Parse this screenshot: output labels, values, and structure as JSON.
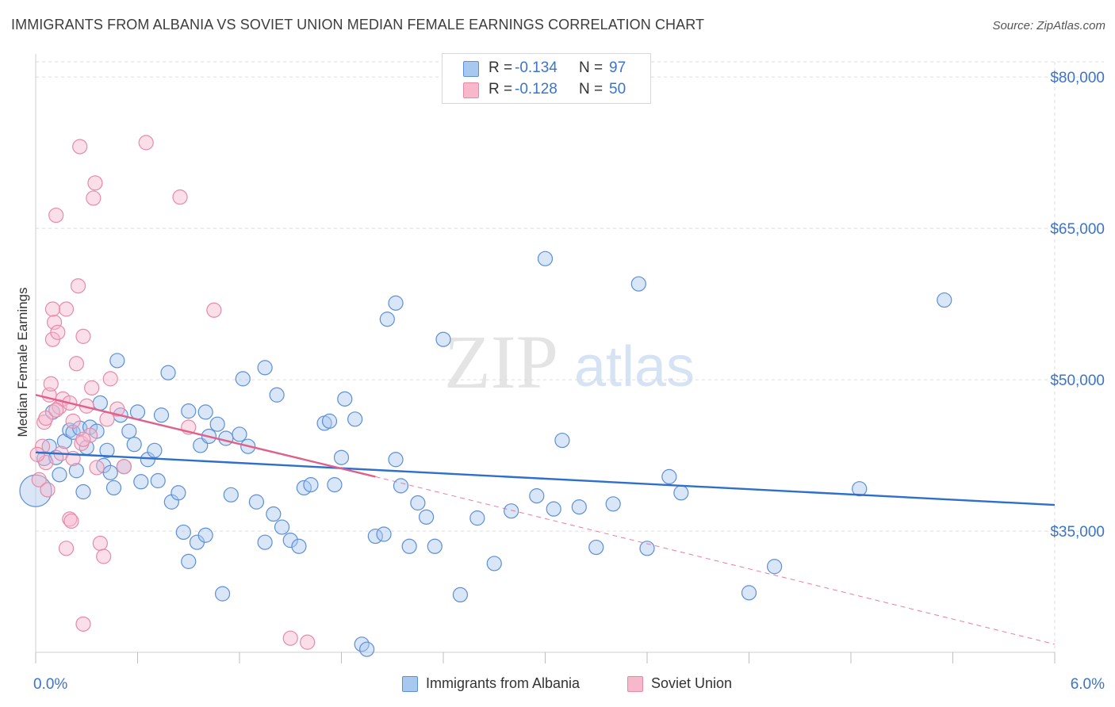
{
  "title": "IMMIGRANTS FROM ALBANIA VS SOVIET UNION MEDIAN FEMALE EARNINGS CORRELATION CHART",
  "source": "Source: ZipAtlas.com",
  "watermark": {
    "zip": "ZIP",
    "atlas": "atlas"
  },
  "stats": {
    "albania": {
      "r_label": "R =",
      "r_value": "-0.134",
      "n_label": "N =",
      "n_value": "97"
    },
    "soviet": {
      "r_label": "R =",
      "r_value": "-0.128",
      "n_label": "N =",
      "n_value": "50"
    }
  },
  "legend": {
    "albania": "Immigrants from Albania",
    "soviet": "Soviet Union"
  },
  "colors": {
    "albania_fill": "#a9c8f0",
    "albania_stroke": "#5d8fd6",
    "albania_line": "#2e6fcc",
    "soviet_fill": "#f7b8cc",
    "soviet_stroke": "#e88aa7",
    "soviet_line": "#e0608a",
    "tick_label": "#3b74c9",
    "grid": "#dddddd"
  },
  "chart_data": {
    "type": "scatter",
    "title": "IMMIGRANTS FROM ALBANIA VS SOVIET UNION MEDIAN FEMALE EARNINGS CORRELATION CHART",
    "xlabel": "",
    "ylabel": "Median Female Earnings",
    "xlim": [
      0,
      6
    ],
    "ylim": [
      23000,
      81500
    ],
    "x_tick_labels": [
      "0.0%",
      "6.0%"
    ],
    "y_ticks": [
      35000,
      50000,
      65000,
      80000
    ],
    "y_tick_labels": [
      "$35,000",
      "$50,000",
      "$65,000",
      "$80,000"
    ],
    "grid": true,
    "legend_position": "bottom-center",
    "series": [
      {
        "name": "Immigrants from Albania",
        "trend": {
          "x": [
            0.0,
            6.0
          ],
          "y": [
            42800,
            37600
          ]
        },
        "points": [
          [
            0.0,
            39000
          ],
          [
            0.05,
            42200
          ],
          [
            0.08,
            43400
          ],
          [
            0.1,
            46800
          ],
          [
            0.12,
            42300
          ],
          [
            0.14,
            40600
          ],
          [
            0.17,
            43900
          ],
          [
            0.2,
            45000
          ],
          [
            0.22,
            44800
          ],
          [
            0.24,
            41000
          ],
          [
            0.26,
            45200
          ],
          [
            0.28,
            38900
          ],
          [
            0.3,
            43300
          ],
          [
            0.32,
            45300
          ],
          [
            0.36,
            44900
          ],
          [
            0.38,
            47700
          ],
          [
            0.4,
            41500
          ],
          [
            0.42,
            43000
          ],
          [
            0.44,
            40800
          ],
          [
            0.46,
            39300
          ],
          [
            0.5,
            46500
          ],
          [
            0.52,
            41400
          ],
          [
            0.55,
            44900
          ],
          [
            0.58,
            43600
          ],
          [
            0.6,
            46800
          ],
          [
            0.62,
            39900
          ],
          [
            0.66,
            42100
          ],
          [
            0.7,
            43000
          ],
          [
            0.72,
            40000
          ],
          [
            0.74,
            46500
          ],
          [
            0.8,
            37900
          ],
          [
            0.84,
            38800
          ],
          [
            0.87,
            34900
          ],
          [
            0.9,
            32000
          ],
          [
            0.95,
            33900
          ],
          [
            1.0,
            34600
          ],
          [
            0.97,
            43500
          ],
          [
            1.02,
            44400
          ],
          [
            1.07,
            45600
          ],
          [
            1.1,
            28800
          ],
          [
            1.15,
            38600
          ],
          [
            1.2,
            44600
          ],
          [
            1.25,
            43400
          ],
          [
            1.3,
            37900
          ],
          [
            1.35,
            33900
          ],
          [
            1.4,
            36700
          ],
          [
            1.45,
            35400
          ],
          [
            1.5,
            34100
          ],
          [
            1.55,
            33500
          ],
          [
            1.58,
            39300
          ],
          [
            1.62,
            39600
          ],
          [
            1.7,
            45700
          ],
          [
            1.73,
            45900
          ],
          [
            1.76,
            39600
          ],
          [
            1.8,
            42300
          ],
          [
            1.88,
            46100
          ],
          [
            1.92,
            23800
          ],
          [
            1.95,
            23300
          ],
          [
            2.0,
            34500
          ],
          [
            2.05,
            34700
          ],
          [
            2.12,
            42100
          ],
          [
            2.15,
            39500
          ],
          [
            2.2,
            33500
          ],
          [
            2.25,
            37800
          ],
          [
            2.3,
            36400
          ],
          [
            2.35,
            33500
          ],
          [
            2.4,
            54000
          ],
          [
            2.5,
            28700
          ],
          [
            2.6,
            36300
          ],
          [
            2.7,
            31800
          ],
          [
            2.8,
            37000
          ],
          [
            2.95,
            38500
          ],
          [
            3.0,
            62000
          ],
          [
            3.05,
            37200
          ],
          [
            3.1,
            44000
          ],
          [
            3.2,
            37400
          ],
          [
            3.3,
            33400
          ],
          [
            3.4,
            37700
          ],
          [
            3.55,
            59500
          ],
          [
            3.6,
            33300
          ],
          [
            3.73,
            40400
          ],
          [
            3.8,
            38800
          ],
          [
            4.2,
            28900
          ],
          [
            4.35,
            31500
          ],
          [
            4.85,
            39200
          ],
          [
            5.35,
            57900
          ],
          [
            2.07,
            56000
          ],
          [
            2.12,
            57600
          ],
          [
            1.35,
            51200
          ],
          [
            1.22,
            50100
          ],
          [
            0.48,
            51900
          ],
          [
            0.78,
            50700
          ],
          [
            1.42,
            48500
          ],
          [
            1.82,
            48100
          ],
          [
            0.9,
            46900
          ],
          [
            1.0,
            46800
          ],
          [
            1.12,
            44200
          ]
        ]
      },
      {
        "name": "Soviet Union",
        "trend": {
          "x": [
            0.0,
            2.0
          ],
          "y": [
            48500,
            40400
          ]
        },
        "trend_extension": {
          "x": [
            2.0,
            6.0
          ],
          "y": [
            40400,
            23800
          ]
        },
        "points": [
          [
            0.02,
            40100
          ],
          [
            0.04,
            43400
          ],
          [
            0.05,
            45800
          ],
          [
            0.06,
            41800
          ],
          [
            0.07,
            39100
          ],
          [
            0.08,
            48500
          ],
          [
            0.09,
            49600
          ],
          [
            0.1,
            54000
          ],
          [
            0.11,
            55700
          ],
          [
            0.12,
            66300
          ],
          [
            0.13,
            54700
          ],
          [
            0.14,
            47300
          ],
          [
            0.15,
            42700
          ],
          [
            0.16,
            48100
          ],
          [
            0.18,
            57000
          ],
          [
            0.2,
            36200
          ],
          [
            0.21,
            36000
          ],
          [
            0.22,
            45900
          ],
          [
            0.24,
            51600
          ],
          [
            0.25,
            59300
          ],
          [
            0.26,
            73100
          ],
          [
            0.27,
            43700
          ],
          [
            0.28,
            54300
          ],
          [
            0.3,
            47400
          ],
          [
            0.32,
            44500
          ],
          [
            0.33,
            49200
          ],
          [
            0.34,
            68000
          ],
          [
            0.35,
            69500
          ],
          [
            0.36,
            41300
          ],
          [
            0.38,
            33800
          ],
          [
            0.4,
            32500
          ],
          [
            0.42,
            46100
          ],
          [
            0.44,
            50100
          ],
          [
            0.48,
            47100
          ],
          [
            0.52,
            41400
          ],
          [
            0.65,
            73500
          ],
          [
            0.85,
            68100
          ],
          [
            0.9,
            45300
          ],
          [
            1.05,
            56900
          ],
          [
            1.5,
            24400
          ],
          [
            1.6,
            24000
          ],
          [
            0.28,
            25800
          ],
          [
            0.18,
            33300
          ],
          [
            0.1,
            57000
          ],
          [
            0.06,
            46200
          ],
          [
            0.12,
            47000
          ],
          [
            0.2,
            47700
          ],
          [
            0.22,
            42200
          ],
          [
            0.28,
            44100
          ],
          [
            0.01,
            42600
          ]
        ]
      }
    ]
  }
}
